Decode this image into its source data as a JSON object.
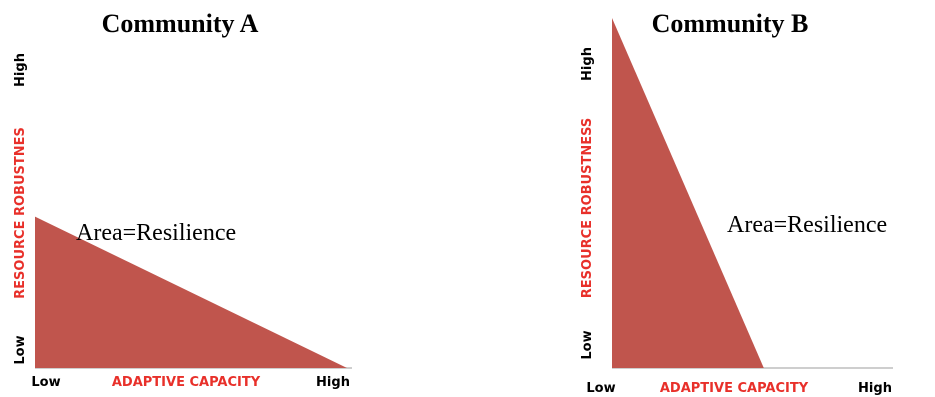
{
  "colors": {
    "triangle": "#c0554d",
    "axis_label": "#e8302a",
    "axis_line": "#bdbdbd"
  },
  "panels": [
    {
      "title": "Community A",
      "area_label": "Area=Resilience",
      "x_axis": {
        "label": "ADAPTIVE CAPACITY",
        "low": "Low",
        "high": "High"
      },
      "y_axis": {
        "label": "RESOURCE ROBUSTNES",
        "low": "Low",
        "high": "High"
      },
      "triangle": {
        "robustness_fraction": 0.43,
        "capacity_fraction": 1.0
      }
    },
    {
      "title": "Community B",
      "area_label": "Area=Resilience",
      "x_axis": {
        "label": "ADAPTIVE CAPACITY",
        "low": "Low",
        "high": "High"
      },
      "y_axis": {
        "label": "RESOURCE ROBUSTNESS",
        "low": "Low",
        "high": "High"
      },
      "triangle": {
        "robustness_fraction": 1.0,
        "capacity_fraction": 0.55
      }
    }
  ]
}
